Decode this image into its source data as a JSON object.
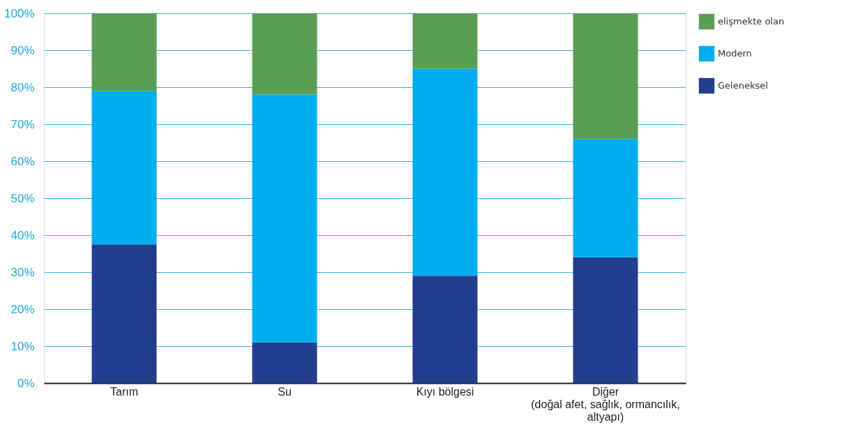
{
  "chart_data": {
    "type": "bar",
    "stacked": true,
    "categories": [
      "Tarım",
      "Su",
      "Kıyı bölgesi",
      "Diğer\n(doğal afet, sağlık, ormancılık,\n altyapı)"
    ],
    "series": [
      {
        "name": "Geleneksel",
        "color": "#233e8f",
        "values": [
          37.5,
          11,
          29,
          34
        ]
      },
      {
        "name": "Modern",
        "color": "#00aeef",
        "values": [
          41.5,
          67,
          56,
          32
        ]
      },
      {
        "name": "elişmekte olan",
        "color": "#5a9e55",
        "values": [
          21,
          22,
          15,
          34
        ]
      }
    ],
    "ylim": [
      0,
      100
    ],
    "yticks": [
      {
        "value": 0,
        "label": "0%"
      },
      {
        "value": 10,
        "label": "10%"
      },
      {
        "value": 20,
        "label": "20%"
      },
      {
        "value": 30,
        "label": "30%"
      },
      {
        "value": 40,
        "label": "40%"
      },
      {
        "value": 50,
        "label": "50%"
      },
      {
        "value": 60,
        "label": "60%"
      },
      {
        "value": 70,
        "label": "70%"
      },
      {
        "value": 80,
        "label": "80%"
      },
      {
        "value": 90,
        "label": "90%"
      },
      {
        "value": 100,
        "label": "100%"
      }
    ],
    "grid": "y",
    "legend": "right"
  }
}
